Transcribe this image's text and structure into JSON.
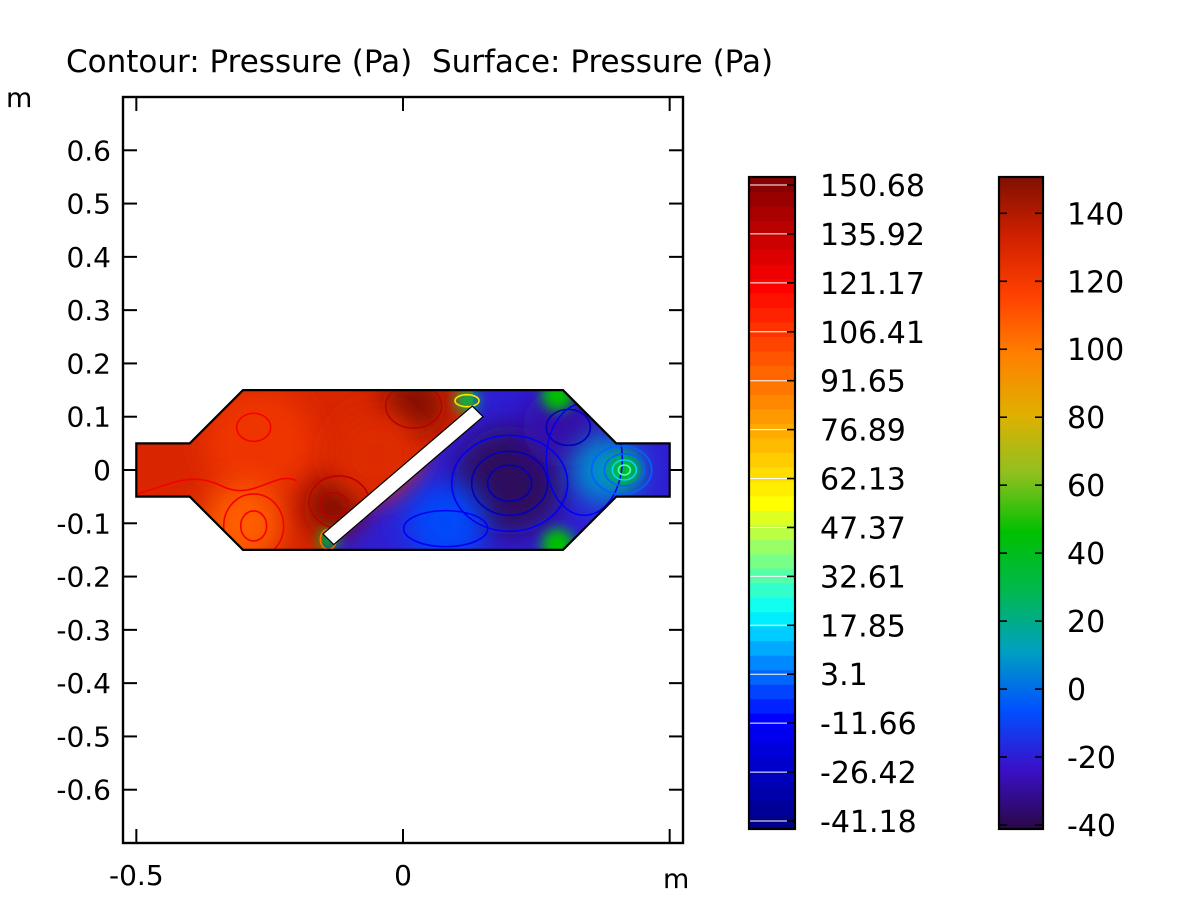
{
  "chart_data": {
    "type": "heatmap",
    "title": "Contour: Pressure (Pa)  Surface: Pressure (Pa)",
    "x_unit": "m",
    "y_unit": "m",
    "xlim": [
      -0.525,
      0.525
    ],
    "ylim": [
      -0.7,
      0.7
    ],
    "x_ticks": [
      -0.5,
      0,
      0.5
    ],
    "x_tick_labels": [
      "-0.5",
      "0",
      ""
    ],
    "y_ticks": [
      0.6,
      0.5,
      0.4,
      0.3,
      0.2,
      0.1,
      0,
      -0.1,
      -0.2,
      -0.3,
      -0.4,
      -0.5,
      -0.6
    ],
    "y_tick_labels": [
      "0.6",
      "0.5",
      "0.4",
      "0.3",
      "0.2",
      "0.1",
      "0",
      "-0.1",
      "-0.2",
      "-0.3",
      "-0.4",
      "-0.5",
      "-0.6"
    ],
    "pressure_range": [
      -41.18,
      150.68
    ],
    "contour_colorbar": {
      "quantity": "Pressure (Pa)",
      "levels": [
        150.68,
        135.92,
        121.17,
        106.41,
        91.65,
        76.89,
        62.13,
        47.37,
        32.61,
        17.85,
        3.1,
        -11.66,
        -26.42,
        -41.18
      ],
      "colormap": [
        "#00007f",
        "#0000ff",
        "#00ffff",
        "#ffff00",
        "#ff8000",
        "#ff0000",
        "#7f0000"
      ]
    },
    "surface_colorbar": {
      "quantity": "Pressure (Pa)",
      "ticks": [
        140,
        120,
        100,
        80,
        60,
        40,
        20,
        0,
        -20,
        -40
      ],
      "range": [
        -41.18,
        150.68
      ],
      "colormap": [
        "#2a0845",
        "#3a10c8",
        "#0050ff",
        "#00a0c0",
        "#00b850",
        "#00c000",
        "#90c020",
        "#e0b000",
        "#ff8000",
        "#ff4000",
        "#d02000",
        "#801000"
      ]
    },
    "domain": {
      "outline": [
        [
          -0.5,
          0.05
        ],
        [
          -0.4,
          0.05
        ],
        [
          -0.3,
          0.15
        ],
        [
          0.3,
          0.15
        ],
        [
          0.4,
          0.05
        ],
        [
          0.5,
          0.05
        ],
        [
          0.5,
          -0.05
        ],
        [
          0.4,
          -0.05
        ],
        [
          0.3,
          -0.15
        ],
        [
          -0.3,
          -0.15
        ],
        [
          -0.4,
          -0.05
        ],
        [
          -0.5,
          -0.05
        ]
      ],
      "baffle": [
        [
          -0.15,
          -0.12
        ],
        [
          0.13,
          0.12
        ],
        [
          0.15,
          0.1
        ],
        [
          -0.13,
          -0.14
        ]
      ],
      "upstream_pressure": 130,
      "downstream_pressure": -20
    }
  }
}
